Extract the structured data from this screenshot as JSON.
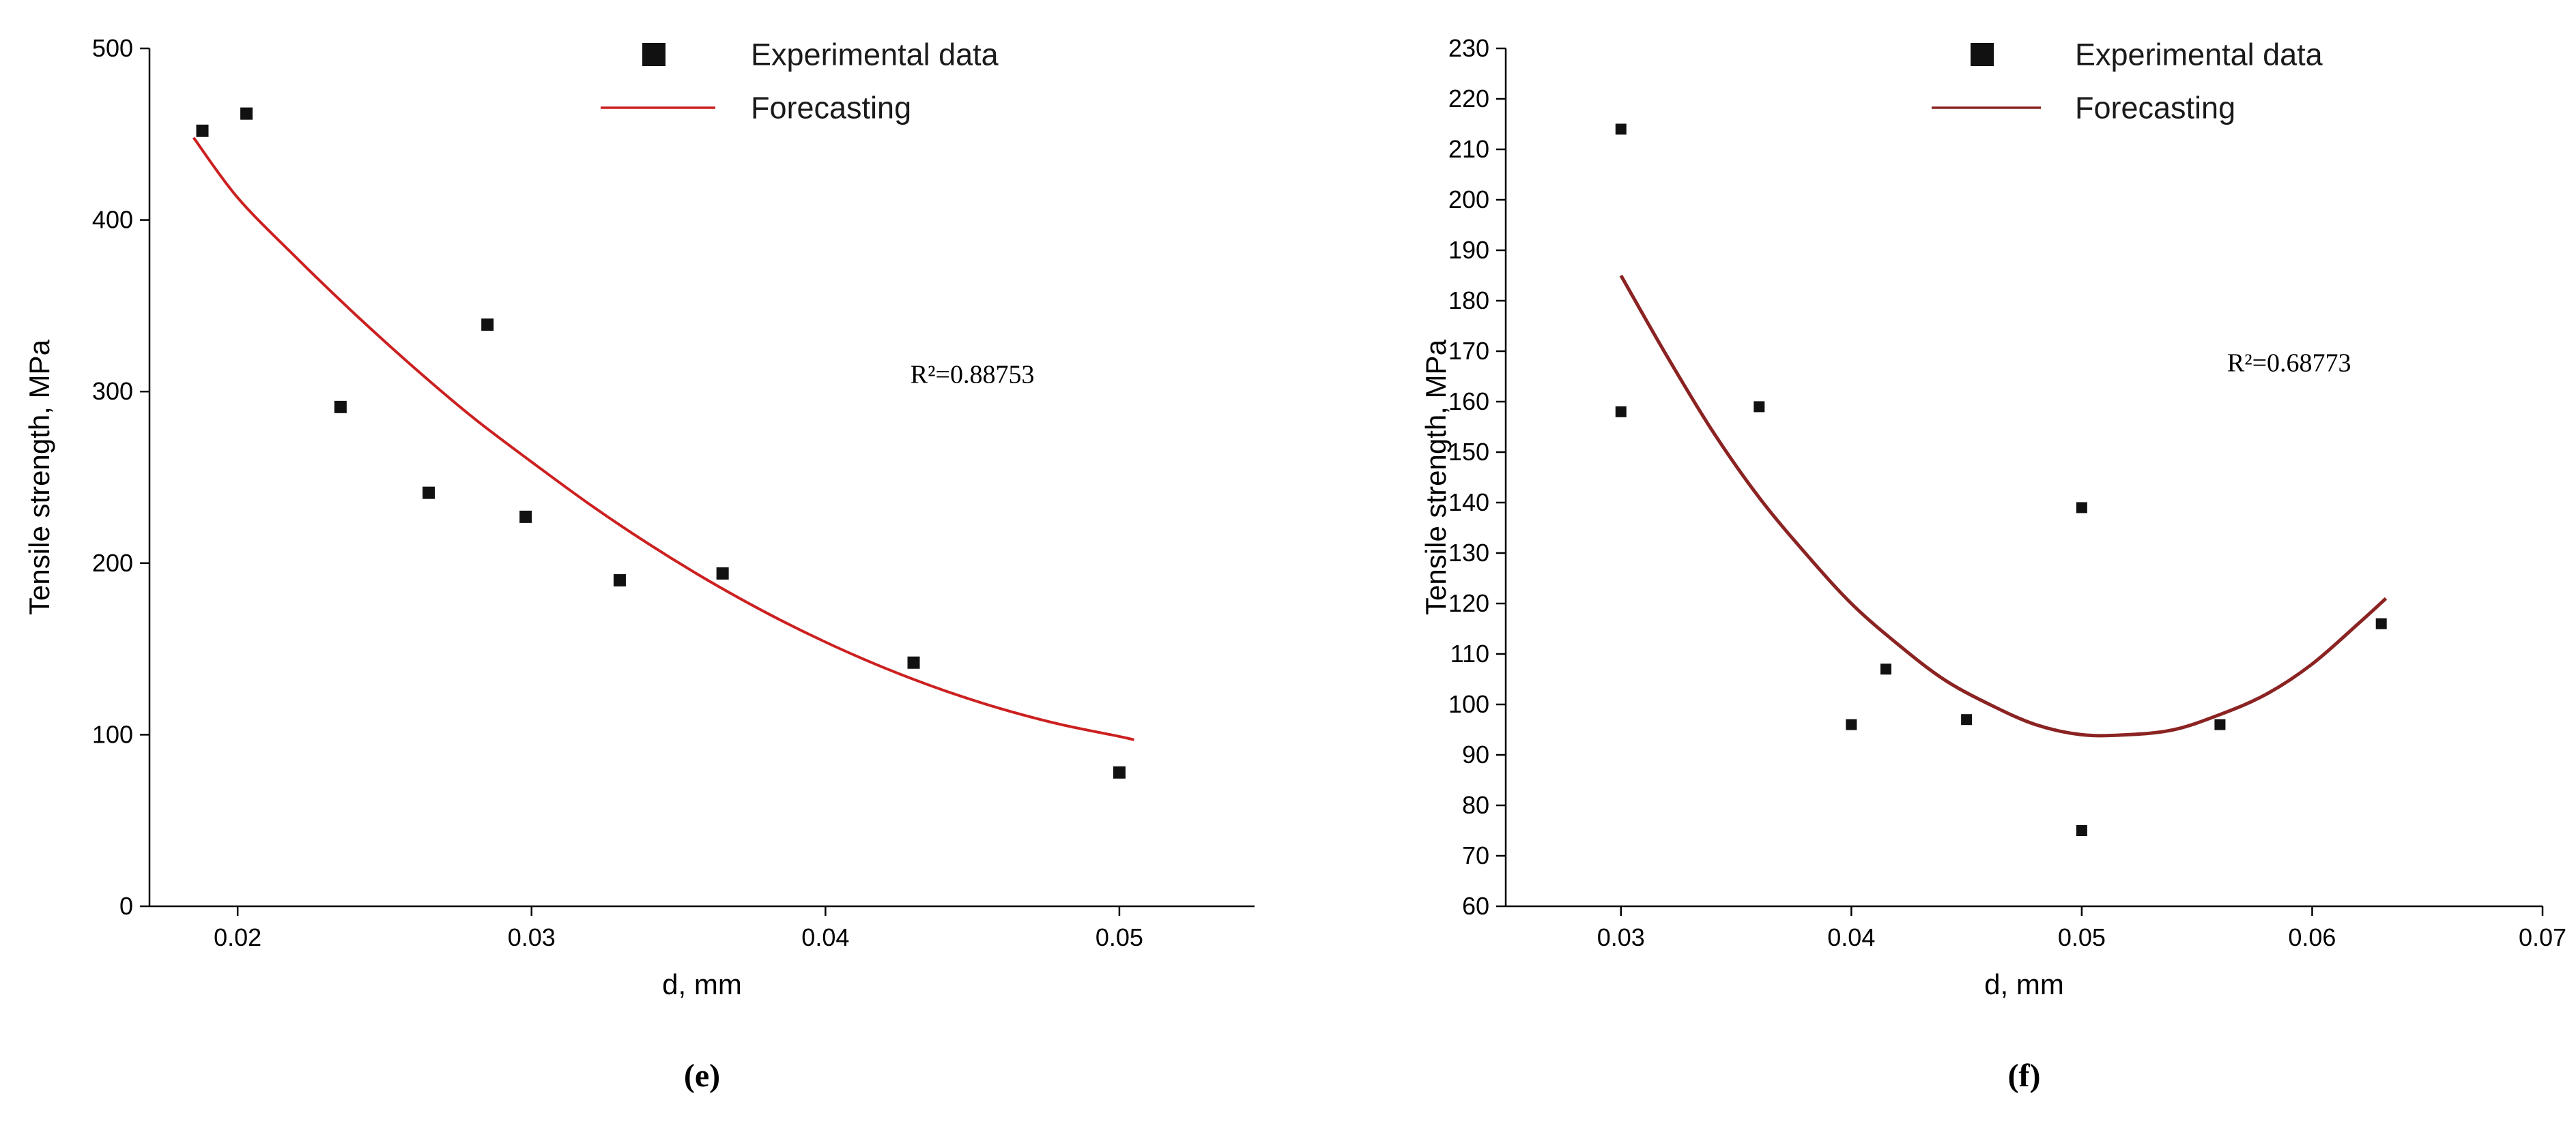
{
  "chart_data": [
    {
      "id": "e",
      "type": "scatter",
      "caption": "(e)",
      "xlabel": "d, mm",
      "ylabel": "Tensile strength, MPa",
      "legend": {
        "experimental": "Experimental data",
        "forecasting": "Forecasting"
      },
      "annotation": {
        "text": "R²=0.88753",
        "x": 0.045,
        "y": 305
      },
      "xlim": [
        0.017,
        0.0546
      ],
      "ylim": [
        0,
        500
      ],
      "xticks": [
        0.02,
        0.03,
        0.04,
        0.05
      ],
      "xtick_labels": [
        "0.02",
        "0.03",
        "0.04",
        "0.05"
      ],
      "yticks": [
        0,
        100,
        200,
        300,
        400,
        500
      ],
      "ytick_labels": [
        "0",
        "100",
        "200",
        "300",
        "400",
        "500"
      ],
      "marker_color": "#111111",
      "curve_color": "#cc2020",
      "points": [
        [
          0.0188,
          452
        ],
        [
          0.0203,
          462
        ],
        [
          0.0235,
          291
        ],
        [
          0.0265,
          241
        ],
        [
          0.0285,
          339
        ],
        [
          0.0298,
          227
        ],
        [
          0.033,
          190
        ],
        [
          0.0365,
          194
        ],
        [
          0.043,
          142
        ],
        [
          0.05,
          78
        ]
      ],
      "curve": [
        [
          0.0185,
          448
        ],
        [
          0.02,
          413
        ],
        [
          0.022,
          378
        ],
        [
          0.024,
          345
        ],
        [
          0.026,
          314
        ],
        [
          0.028,
          285
        ],
        [
          0.03,
          259
        ],
        [
          0.032,
          234
        ],
        [
          0.034,
          211
        ],
        [
          0.036,
          190
        ],
        [
          0.038,
          171
        ],
        [
          0.04,
          154
        ],
        [
          0.042,
          139
        ],
        [
          0.044,
          126
        ],
        [
          0.046,
          115
        ],
        [
          0.048,
          106
        ],
        [
          0.05,
          99
        ],
        [
          0.0505,
          97
        ]
      ]
    },
    {
      "id": "f",
      "type": "scatter",
      "caption": "(f)",
      "xlabel": "d, mm",
      "ylabel": "Tensile strength, MPa",
      "legend": {
        "experimental": "Experimental data",
        "forecasting": "Forecasting"
      },
      "annotation": {
        "text": "R²=0.68773",
        "x": 0.059,
        "y": 166
      },
      "xlim": [
        0.025,
        0.07
      ],
      "ylim": [
        60,
        230
      ],
      "xticks": [
        0.03,
        0.04,
        0.05,
        0.06,
        0.07
      ],
      "xtick_labels": [
        "0.03",
        "0.04",
        "0.05",
        "0.06",
        "0.07"
      ],
      "yticks": [
        60,
        70,
        80,
        90,
        100,
        110,
        120,
        130,
        140,
        150,
        160,
        170,
        180,
        190,
        200,
        210,
        220,
        230
      ],
      "ytick_labels": [
        "60",
        "70",
        "80",
        "90",
        "100",
        "110",
        "120",
        "130",
        "140",
        "150",
        "160",
        "170",
        "180",
        "190",
        "200",
        "210",
        "220",
        "230"
      ],
      "marker_color": "#111111",
      "curve_color": "#8b2323",
      "points": [
        [
          0.03,
          214
        ],
        [
          0.03,
          158
        ],
        [
          0.036,
          159
        ],
        [
          0.04,
          96
        ],
        [
          0.0415,
          107
        ],
        [
          0.045,
          97
        ],
        [
          0.05,
          139
        ],
        [
          0.05,
          75
        ],
        [
          0.056,
          96
        ],
        [
          0.063,
          116
        ]
      ],
      "curve": [
        [
          0.03,
          185
        ],
        [
          0.032,
          169
        ],
        [
          0.034,
          154
        ],
        [
          0.036,
          141
        ],
        [
          0.038,
          130
        ],
        [
          0.04,
          120
        ],
        [
          0.042,
          112
        ],
        [
          0.044,
          105
        ],
        [
          0.046,
          100
        ],
        [
          0.048,
          96
        ],
        [
          0.05,
          94
        ],
        [
          0.052,
          94
        ],
        [
          0.054,
          95
        ],
        [
          0.056,
          98
        ],
        [
          0.058,
          102
        ],
        [
          0.06,
          108
        ],
        [
          0.062,
          116
        ],
        [
          0.0632,
          121
        ]
      ]
    }
  ]
}
